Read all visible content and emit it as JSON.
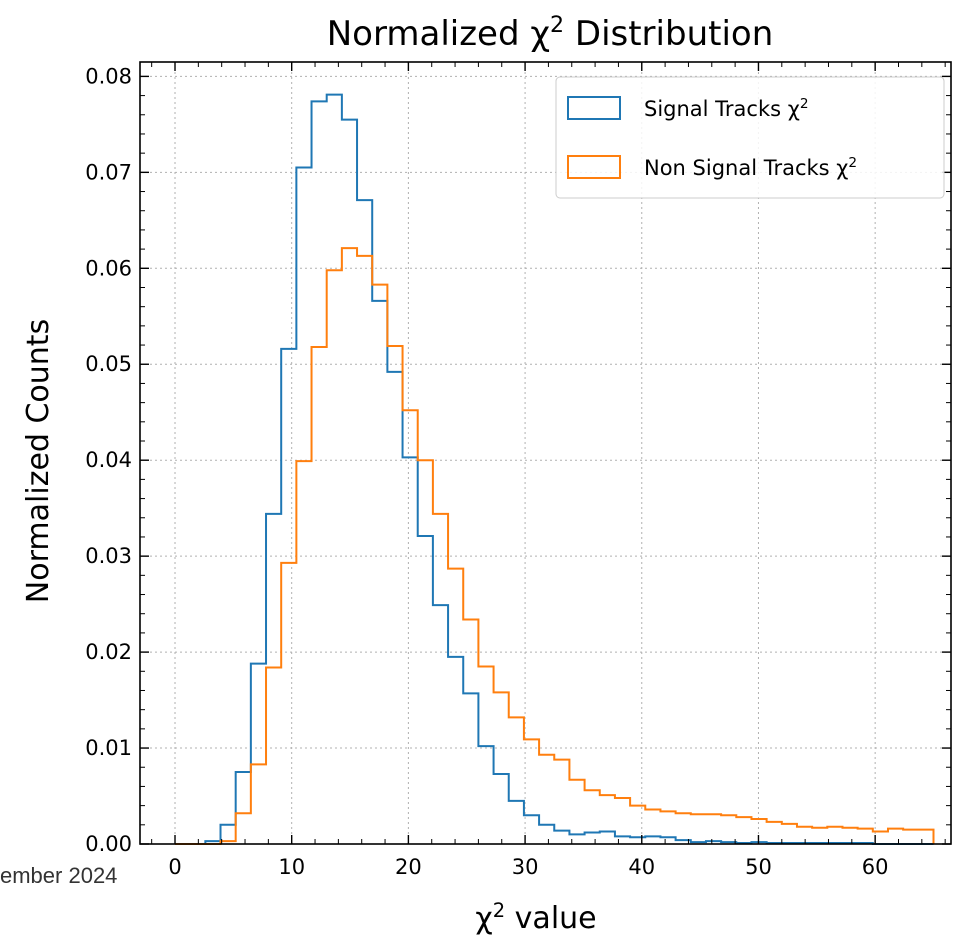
{
  "footer": {
    "text": "ember 2024"
  },
  "chart_data": {
    "type": "step",
    "title": "Normalized χ² Distribution",
    "xlabel": "χ² value",
    "ylabel": "Normalized Counts",
    "xlim": [
      -3,
      66.5
    ],
    "ylim": [
      0,
      0.0815
    ],
    "xticks": [
      0,
      10,
      20,
      30,
      40,
      50,
      60
    ],
    "yticks": [
      0.0,
      0.01,
      0.02,
      0.03,
      0.04,
      0.05,
      0.06,
      0.07,
      0.08
    ],
    "ytick_labels": [
      "0.00",
      "0.01",
      "0.02",
      "0.03",
      "0.04",
      "0.05",
      "0.06",
      "0.07",
      "0.08"
    ],
    "grid": true,
    "legend_position": "top-right",
    "bin_edges": [
      0,
      1.3,
      2.6,
      3.9,
      5.2,
      6.5,
      7.8,
      9.1,
      10.4,
      11.7,
      13.0,
      14.3,
      15.6,
      16.9,
      18.2,
      19.5,
      20.8,
      22.1,
      23.4,
      24.7,
      26.0,
      27.3,
      28.6,
      29.9,
      31.2,
      32.5,
      33.8,
      35.1,
      36.4,
      37.7,
      39.0,
      40.3,
      41.6,
      42.9,
      44.2,
      45.5,
      46.8,
      48.1,
      49.4,
      50.7,
      52.0,
      53.3,
      54.6,
      55.9,
      57.2,
      58.5,
      59.8,
      61.1,
      62.4,
      63.7,
      65.0
    ],
    "series": [
      {
        "name": "Signal Tracks χ²",
        "color": "#1f77b4",
        "values": [
          0.0,
          0.0,
          0.0003,
          0.002,
          0.0075,
          0.0188,
          0.0344,
          0.0516,
          0.0705,
          0.0774,
          0.0781,
          0.0755,
          0.0671,
          0.0566,
          0.0492,
          0.0403,
          0.0321,
          0.0249,
          0.0195,
          0.0157,
          0.0102,
          0.0073,
          0.0045,
          0.003,
          0.002,
          0.0014,
          0.001,
          0.0012,
          0.0013,
          0.0008,
          0.0007,
          0.0008,
          0.0007,
          0.0004,
          0.0002,
          0.0003,
          0.0002,
          0.0001,
          0.0002,
          0.0001,
          0.0001,
          0.0001,
          0.0001,
          0.0001,
          0.0001,
          0.0001,
          0.0,
          0.0,
          0.0,
          0.0
        ]
      },
      {
        "name": "Non Signal Tracks χ²",
        "color": "#ff7f0e",
        "values": [
          0.0,
          0.0,
          0.0,
          0.0003,
          0.0032,
          0.0083,
          0.0184,
          0.0293,
          0.0399,
          0.0518,
          0.0598,
          0.0621,
          0.0613,
          0.0583,
          0.0519,
          0.0452,
          0.04,
          0.0344,
          0.0287,
          0.0234,
          0.0185,
          0.0158,
          0.0132,
          0.0109,
          0.0093,
          0.0088,
          0.0067,
          0.0056,
          0.0051,
          0.0048,
          0.004,
          0.0036,
          0.0034,
          0.0032,
          0.0031,
          0.0031,
          0.003,
          0.0028,
          0.0026,
          0.0023,
          0.0021,
          0.0018,
          0.0017,
          0.0018,
          0.0017,
          0.0016,
          0.0013,
          0.0016,
          0.0015,
          0.0015
        ]
      }
    ]
  }
}
